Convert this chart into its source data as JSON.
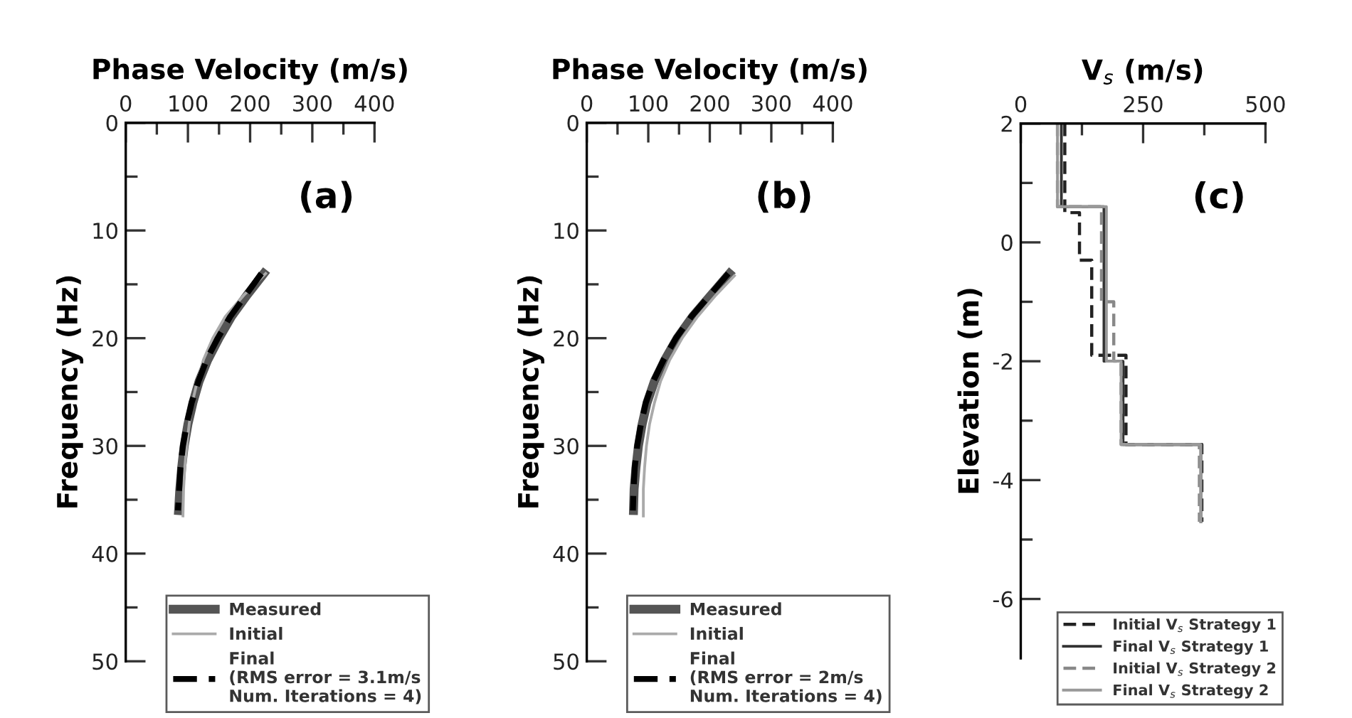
{
  "chart_data": [
    {
      "type": "line",
      "xlabel": "Phase Velocity (m/s)",
      "ylabel": "Frequency (Hz)",
      "annotations": [
        "(a)"
      ],
      "xlim": [
        0,
        400
      ],
      "xticks": [
        0,
        {
          "value": 50,
          "label": null
        },
        100,
        {
          "value": 150,
          "label": null
        },
        200,
        {
          "value": 250,
          "label": null
        },
        300,
        {
          "value": 350,
          "label": null
        },
        400
      ],
      "ylim": [
        50,
        0
      ],
      "yticks": [
        0,
        {
          "value": 5,
          "label": null
        },
        10,
        {
          "value": 15,
          "label": null
        },
        20,
        {
          "value": 25,
          "label": null
        },
        30,
        {
          "value": 35,
          "label": null
        },
        40,
        {
          "value": 45,
          "label": null
        },
        50
      ],
      "grid": false,
      "legend": "bottom right",
      "series": [
        {
          "name": "Measured",
          "color": "#555555",
          "line_style": "solid",
          "x": [
            222,
            195,
            170,
            150,
            132,
            118,
            108,
            100,
            94,
            90,
            87,
            85
          ],
          "values": [
            14,
            16,
            18,
            20,
            22,
            24,
            26,
            28,
            30,
            32,
            34,
            36
          ]
        },
        {
          "name": "Initial",
          "color": "#aaaaaa",
          "line_style": "solid",
          "x": [
            225,
            190,
            160,
            140,
            125,
            115,
            107,
            102,
            98,
            95,
            93,
            92
          ],
          "values": [
            14,
            16,
            18,
            20,
            22,
            24,
            26,
            28,
            30,
            32,
            34,
            36.5
          ]
        },
        {
          "name": "Final\n(RMS error = 3.1m/s\nNum. Iterations = 4)",
          "color": "#000000",
          "line_style": "dashed",
          "x": [
            218,
            193,
            168,
            148,
            130,
            117,
            106,
            98,
            92,
            88,
            86,
            84
          ],
          "values": [
            14,
            16,
            18,
            20,
            22,
            24,
            26,
            28,
            30,
            32,
            34,
            36
          ]
        }
      ]
    },
    {
      "type": "line",
      "xlabel": "Phase Velocity (m/s)",
      "ylabel": "Frequency (Hz)",
      "annotations": [
        "(b)"
      ],
      "xlim": [
        0,
        400
      ],
      "xticks": [
        0,
        {
          "value": 50,
          "label": null
        },
        100,
        {
          "value": 150,
          "label": null
        },
        200,
        {
          "value": 250,
          "label": null
        },
        300,
        {
          "value": 350,
          "label": null
        },
        400
      ],
      "ylim": [
        50,
        0
      ],
      "yticks": [
        0,
        {
          "value": 5,
          "label": null
        },
        10,
        {
          "value": 15,
          "label": null
        },
        20,
        {
          "value": 25,
          "label": null
        },
        30,
        {
          "value": 35,
          "label": null
        },
        40,
        {
          "value": 45,
          "label": null
        },
        50
      ],
      "grid": false,
      "legend": "bottom right",
      "series": [
        {
          "name": "Measured",
          "color": "#555555",
          "line_style": "solid",
          "x": [
            232,
            202,
            172,
            147,
            127,
            110,
            98,
            90,
            84,
            80,
            77,
            76
          ],
          "values": [
            14,
            16,
            18,
            20,
            22,
            24,
            26,
            28,
            30,
            32,
            34,
            36
          ]
        },
        {
          "name": "Initial",
          "color": "#aaaaaa",
          "line_style": "solid",
          "x": [
            240,
            210,
            180,
            155,
            135,
            120,
            110,
            102,
            97,
            94,
            92,
            92
          ],
          "values": [
            14.2,
            16,
            18,
            20,
            22,
            24,
            26,
            28,
            30,
            32,
            34,
            36.5
          ]
        },
        {
          "name": "Final\n(RMS error = 2m/s\nNum. Iterations = 4)",
          "color": "#000000",
          "line_style": "dashed",
          "x": [
            230,
            200,
            170,
            145,
            125,
            108,
            96,
            88,
            82,
            78,
            76,
            75
          ],
          "values": [
            14,
            16,
            18,
            20,
            22,
            24,
            26,
            28,
            30,
            32,
            34,
            36
          ]
        }
      ]
    },
    {
      "type": "line",
      "xlabel": "V$_{s}$ (m/s)",
      "ylabel": "Elevation (m)",
      "annotations": [
        "(c)"
      ],
      "xlim": [
        0,
        500
      ],
      "xticks": [
        0,
        {
          "value": 125,
          "label": null
        },
        250,
        {
          "value": 375,
          "label": null
        },
        500
      ],
      "ylim": [
        -7,
        2
      ],
      "yticks": [
        2,
        {
          "value": 1,
          "label": null
        },
        0,
        {
          "value": -1,
          "label": null
        },
        -2,
        {
          "value": -3,
          "label": null
        },
        -4,
        {
          "value": -5,
          "label": null
        },
        -6
      ],
      "grid": false,
      "legend": "bottom right",
      "series": [
        {
          "name": "Initial V$_{s}$ Strategy 1",
          "color": "#222222",
          "line_style": "dashed",
          "x": [
            90,
            90,
            120,
            120,
            145,
            145,
            215,
            215,
            370,
            370
          ],
          "values": [
            2,
            0.5,
            0.5,
            -0.3,
            -0.3,
            -1.9,
            -1.9,
            -3.4,
            -3.4,
            -4.7
          ]
        },
        {
          "name": "Final V$_{s}$ Strategy 1",
          "color": "#333333",
          "line_style": "solid",
          "x": [
            83,
            83,
            170,
            170,
            209,
            209,
            368,
            368
          ],
          "values": [
            2,
            0.6,
            0.6,
            -2,
            -2,
            -3.4,
            -3.4,
            -4.7
          ]
        },
        {
          "name": "Initial V$_{s}$ Strategy 2",
          "color": "#888888",
          "line_style": "dashed",
          "x": [
            75,
            75,
            165,
            165,
            190,
            190,
            205,
            205,
            365,
            365
          ],
          "values": [
            2,
            0.6,
            0.6,
            -1.0,
            -1.0,
            -2.0,
            -2.0,
            -3.4,
            -3.4,
            -4.7
          ]
        },
        {
          "name": "Final V$_{s}$ Strategy 2",
          "color": "#999999",
          "line_style": "solid",
          "x": [
            75,
            75,
            175,
            175,
            205,
            205,
            368,
            368
          ],
          "values": [
            2,
            0.6,
            0.6,
            -2,
            -2,
            -3.4,
            -3.4,
            -4.7
          ]
        }
      ]
    }
  ]
}
